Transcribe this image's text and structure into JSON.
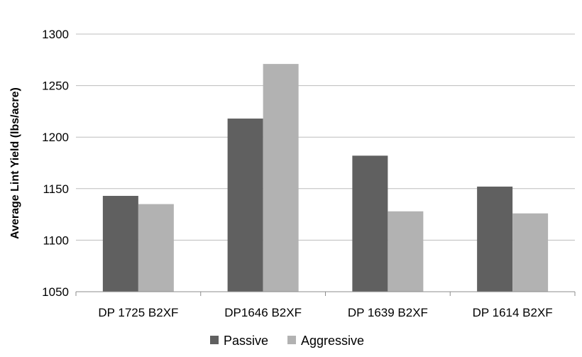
{
  "chart_data": {
    "type": "bar",
    "title": "",
    "xlabel": "",
    "ylabel": "Average Lint Yield (lbs/acre)",
    "categories": [
      "DP 1725 B2XF",
      "DP1646 B2XF",
      "DP 1639 B2XF",
      "DP 1614 B2XF"
    ],
    "series": [
      {
        "name": "Passive",
        "values": [
          1143,
          1218,
          1182,
          1152
        ],
        "color": "#606060"
      },
      {
        "name": "Aggressive",
        "values": [
          1135,
          1271,
          1128,
          1126
        ],
        "color": "#b2b2b2"
      }
    ],
    "ylim": [
      1050,
      1300
    ],
    "yticks": [
      1050,
      1100,
      1150,
      1200,
      1250,
      1300
    ],
    "grid": true,
    "legend": "bottom"
  }
}
